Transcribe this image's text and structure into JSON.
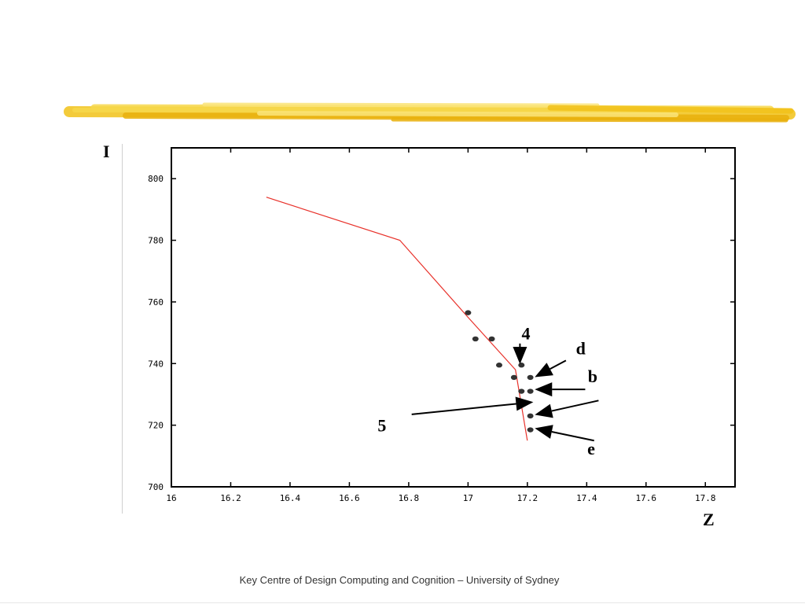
{
  "slide": {
    "footer": "Key Centre of Design Computing and Cognition – University of Sydney",
    "y_axis_letter": "I",
    "x_axis_letter": "Z",
    "brush_colors": [
      "#f2c21a",
      "#f7d84b",
      "#e9b10d",
      "#fbe57a"
    ]
  },
  "chart_data": {
    "type": "line",
    "title": "",
    "xlabel": "Z",
    "ylabel": "I",
    "xlim": [
      16,
      17.9
    ],
    "ylim": [
      700,
      810
    ],
    "x_ticks": [
      16,
      16.2,
      16.4,
      16.6,
      16.8,
      17,
      17.2,
      17.4,
      17.6,
      17.8
    ],
    "x_tick_labels": [
      "16",
      "16.2",
      "16.4",
      "16.6",
      "16.8",
      "17",
      "17.2",
      "17.4",
      "17.6",
      "17.8"
    ],
    "y_ticks": [
      700,
      720,
      740,
      760,
      780,
      800
    ],
    "y_tick_labels": [
      "700",
      "720",
      "740",
      "760",
      "780",
      "800"
    ],
    "grid": false,
    "line_series": {
      "color": "#e8312a",
      "x": [
        16.32,
        16.77,
        17.0,
        17.16,
        17.2
      ],
      "y": [
        794,
        780,
        755,
        738,
        715
      ]
    },
    "scatter_series": {
      "color": "#333333",
      "points": [
        {
          "x": 17.0,
          "y": 756.5
        },
        {
          "x": 17.025,
          "y": 748
        },
        {
          "x": 17.08,
          "y": 748
        },
        {
          "x": 17.105,
          "y": 739.5
        },
        {
          "x": 17.18,
          "y": 739.5
        },
        {
          "x": 17.155,
          "y": 735.5
        },
        {
          "x": 17.21,
          "y": 735.5
        },
        {
          "x": 17.18,
          "y": 731
        },
        {
          "x": 17.21,
          "y": 731
        },
        {
          "x": 17.21,
          "y": 723
        },
        {
          "x": 17.21,
          "y": 718.5
        }
      ]
    },
    "annotations": [
      {
        "label": "4",
        "text_at": [
          17.195,
          747.8
        ],
        "arrow_from": [
          17.175,
          746.5
        ],
        "arrow_to": [
          17.175,
          739.8
        ]
      },
      {
        "label": "d",
        "text_at": [
          17.38,
          743
        ],
        "arrow_from": [
          17.33,
          741
        ],
        "arrow_to": [
          17.225,
          735.6
        ]
      },
      {
        "label": "b",
        "text_at": [
          17.42,
          734
        ],
        "arrow_from": [
          17.395,
          731.6
        ],
        "arrow_to": [
          17.225,
          731.6
        ]
      },
      {
        "label": "5",
        "text_at": [
          16.71,
          718
        ],
        "arrow_from": [
          16.81,
          723.5
        ],
        "arrow_to": [
          17.22,
          727.5
        ]
      },
      {
        "label": "",
        "text_at": null,
        "arrow_from": [
          17.44,
          728
        ],
        "arrow_to": [
          17.225,
          723.4
        ]
      },
      {
        "label": "e",
        "text_at": [
          17.415,
          710.5
        ],
        "arrow_from": [
          17.425,
          715
        ],
        "arrow_to": [
          17.225,
          719
        ]
      }
    ]
  }
}
